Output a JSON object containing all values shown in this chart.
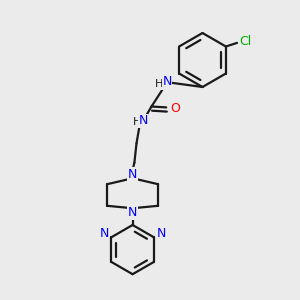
{
  "bg_color": "#ebebeb",
  "bond_color": "#1a1a1a",
  "nitrogen_color": "#0000ff",
  "oxygen_color": "#ff0000",
  "chlorine_color": "#00aa00",
  "line_width": 1.6,
  "figsize": [
    3.0,
    3.0
  ],
  "dpi": 100,
  "xlim": [
    0,
    10
  ],
  "ylim": [
    0,
    10
  ]
}
